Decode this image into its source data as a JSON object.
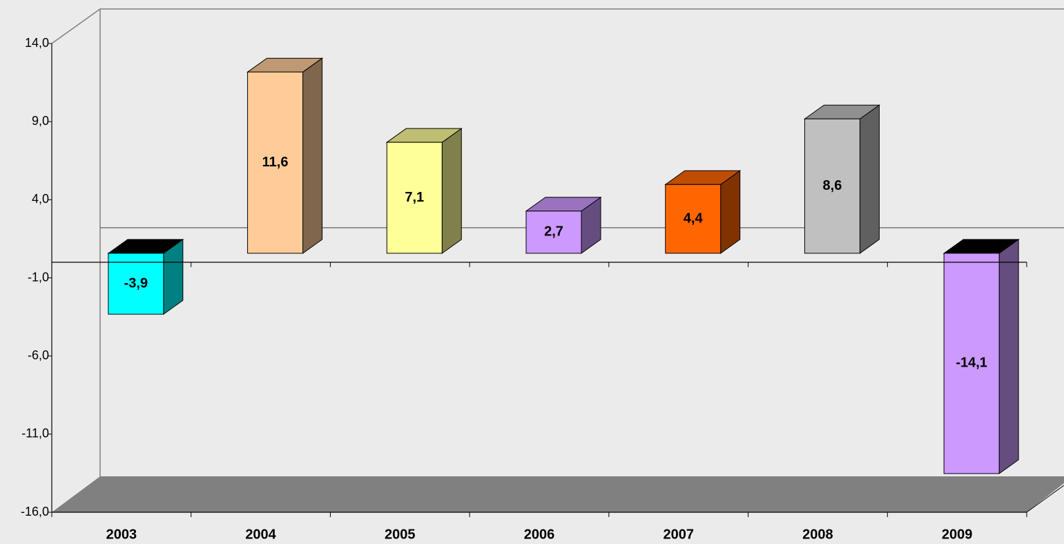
{
  "chart_data": {
    "type": "bar3d",
    "categories": [
      "2003",
      "2004",
      "2005",
      "2006",
      "2007",
      "2008",
      "2009"
    ],
    "values": [
      -3.9,
      11.6,
      7.1,
      2.7,
      4.4,
      8.6,
      -14.1
    ],
    "value_labels": [
      "-3,9",
      "11,6",
      "7,1",
      "2,7",
      "4,4",
      "8,6",
      "-14,1"
    ],
    "colors": [
      "#00ffff",
      "#ffcc99",
      "#ffff99",
      "#cc99ff",
      "#ff6600",
      "#c0c0c0",
      "#cc99ff"
    ],
    "ylim": [
      -16,
      14
    ],
    "yticks": [
      {
        "value": -16,
        "label": "-16,0"
      },
      {
        "value": -11,
        "label": "-11,0"
      },
      {
        "value": -6,
        "label": "-6,0"
      },
      {
        "value": -1,
        "label": "-1,0"
      },
      {
        "value": 4,
        "label": "4,0"
      },
      {
        "value": 9,
        "label": "9,0"
      },
      {
        "value": 14,
        "label": "14,0"
      }
    ]
  }
}
